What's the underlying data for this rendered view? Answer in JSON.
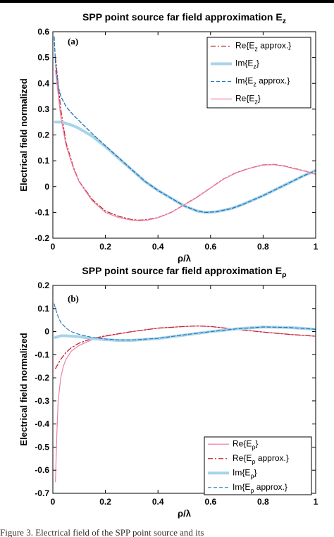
{
  "caption": "Figure 3. Electrical field of the SPP point source and its",
  "chart_data": [
    {
      "type": "line",
      "title": "SPP point source far field approximation E",
      "title_sub": "z",
      "panel_label": "(a)",
      "xlabel": "ρ/λ",
      "ylabel": "Electrical field normalized",
      "xlim": [
        0,
        1
      ],
      "ylim": [
        -0.2,
        0.6
      ],
      "xticks": [
        "0",
        "0.2",
        "0.4",
        "0.6",
        "0.8",
        "1"
      ],
      "yticks": [
        "-0.2",
        "-0.1",
        "0",
        "0.1",
        "0.2",
        "0.3",
        "0.4",
        "0.5",
        "0.6"
      ],
      "grid": false,
      "legend_position": "top-right",
      "series": [
        {
          "name": "Re{E",
          "sub": "z",
          "suffix": " approx.}",
          "color": "#c0272d",
          "style": "dashdot",
          "width": 1.3,
          "x": [
            0.01,
            0.03,
            0.05,
            0.08,
            0.1,
            0.15,
            0.2,
            0.25,
            0.3,
            0.33,
            0.36,
            0.4,
            0.45,
            0.5,
            0.55,
            0.6,
            0.65,
            0.7,
            0.75,
            0.8,
            0.84,
            0.88,
            0.92,
            0.96,
            1.0
          ],
          "y": [
            0.5,
            0.3,
            0.17,
            0.07,
            0.02,
            -0.05,
            -0.095,
            -0.115,
            -0.128,
            -0.13,
            -0.128,
            -0.12,
            -0.1,
            -0.07,
            -0.04,
            -0.005,
            0.03,
            0.055,
            0.072,
            0.084,
            0.086,
            0.08,
            0.07,
            0.06,
            0.048
          ]
        },
        {
          "name": "Im{E",
          "sub": "z",
          "suffix": "}",
          "color": "#a8d4ea",
          "style": "solid",
          "width": 4,
          "x": [
            0.01,
            0.03,
            0.05,
            0.08,
            0.1,
            0.15,
            0.2,
            0.25,
            0.3,
            0.35,
            0.4,
            0.45,
            0.5,
            0.55,
            0.58,
            0.62,
            0.68,
            0.72,
            0.8,
            0.85,
            0.9,
            0.95,
            1.0
          ],
          "y": [
            0.25,
            0.25,
            0.245,
            0.235,
            0.225,
            0.195,
            0.155,
            0.11,
            0.065,
            0.02,
            -0.015,
            -0.045,
            -0.075,
            -0.095,
            -0.1,
            -0.098,
            -0.085,
            -0.07,
            -0.035,
            -0.01,
            0.015,
            0.04,
            0.062
          ]
        },
        {
          "name": "Im{E",
          "sub": "z",
          "suffix": " approx.}",
          "color": "#1f73b7",
          "style": "dashed",
          "width": 1.3,
          "x": [
            0.005,
            0.01,
            0.02,
            0.03,
            0.05,
            0.08,
            0.1,
            0.15,
            0.2,
            0.25,
            0.3,
            0.35,
            0.4,
            0.45,
            0.5,
            0.55,
            0.58,
            0.62,
            0.68,
            0.72,
            0.8,
            0.85,
            0.9,
            0.95,
            1.0
          ],
          "y": [
            0.58,
            0.48,
            0.39,
            0.35,
            0.31,
            0.275,
            0.255,
            0.205,
            0.158,
            0.112,
            0.066,
            0.021,
            -0.015,
            -0.045,
            -0.075,
            -0.095,
            -0.1,
            -0.098,
            -0.085,
            -0.07,
            -0.035,
            -0.01,
            0.015,
            0.04,
            0.062
          ]
        },
        {
          "name": "Re{E",
          "sub": "z",
          "suffix": "}",
          "color": "#ee7fa8",
          "style": "solid",
          "width": 1.2,
          "x": [
            0.01,
            0.03,
            0.05,
            0.08,
            0.1,
            0.15,
            0.2,
            0.25,
            0.3,
            0.33,
            0.36,
            0.4,
            0.45,
            0.5,
            0.55,
            0.6,
            0.65,
            0.7,
            0.75,
            0.8,
            0.84,
            0.88,
            0.92,
            0.96,
            1.0
          ],
          "y": [
            0.45,
            0.27,
            0.16,
            0.065,
            0.018,
            -0.055,
            -0.1,
            -0.12,
            -0.13,
            -0.132,
            -0.13,
            -0.121,
            -0.101,
            -0.071,
            -0.041,
            -0.006,
            0.029,
            0.054,
            0.071,
            0.083,
            0.085,
            0.079,
            0.069,
            0.059,
            0.047
          ]
        }
      ]
    },
    {
      "type": "line",
      "title": "SPP point source far field approximation E",
      "title_sub": "ρ",
      "panel_label": "(b)",
      "xlabel": "ρ/λ",
      "ylabel": "Electrical field normalized",
      "xlim": [
        0,
        1
      ],
      "ylim": [
        -0.7,
        0.2
      ],
      "xticks": [
        "0",
        "0.2",
        "0.4",
        "0.6",
        "0.8",
        "1"
      ],
      "yticks": [
        "-0.7",
        "-0.6",
        "-0.5",
        "-0.4",
        "-0.3",
        "-0.2",
        "-0.1",
        "0",
        "0.1",
        "0.2"
      ],
      "grid": false,
      "legend_position": "bottom-right",
      "series": [
        {
          "name": "Re{E",
          "sub": "ρ",
          "suffix": "}",
          "color": "#ee7fa8",
          "style": "solid",
          "width": 1.2,
          "x": [
            0.01,
            0.015,
            0.02,
            0.03,
            0.04,
            0.05,
            0.07,
            0.1,
            0.15,
            0.2,
            0.3,
            0.4,
            0.5,
            0.55,
            0.6,
            0.7,
            0.8,
            0.9,
            1.0
          ],
          "y": [
            -0.65,
            -0.45,
            -0.3,
            -0.2,
            -0.15,
            -0.12,
            -0.085,
            -0.06,
            -0.035,
            -0.02,
            0.0,
            0.015,
            0.022,
            0.024,
            0.022,
            0.01,
            -0.002,
            -0.012,
            -0.02
          ]
        },
        {
          "name": "Re{E",
          "sub": "ρ",
          "suffix": " approx.}",
          "color": "#c0272d",
          "style": "dashdot",
          "width": 1.3,
          "x": [
            0.01,
            0.02,
            0.03,
            0.05,
            0.07,
            0.1,
            0.15,
            0.2,
            0.3,
            0.4,
            0.5,
            0.55,
            0.6,
            0.7,
            0.8,
            0.9,
            1.0
          ],
          "y": [
            -0.16,
            -0.14,
            -0.12,
            -0.09,
            -0.07,
            -0.05,
            -0.03,
            -0.018,
            0.0,
            0.015,
            0.022,
            0.025,
            0.022,
            0.01,
            -0.002,
            -0.012,
            -0.02
          ]
        },
        {
          "name": "Im{E",
          "sub": "ρ",
          "suffix": "}",
          "color": "#a8d4ea",
          "style": "solid",
          "width": 4,
          "x": [
            0.01,
            0.03,
            0.05,
            0.1,
            0.15,
            0.2,
            0.25,
            0.3,
            0.4,
            0.5,
            0.6,
            0.7,
            0.8,
            0.9,
            1.0
          ],
          "y": [
            -0.025,
            -0.018,
            -0.018,
            -0.022,
            -0.03,
            -0.035,
            -0.038,
            -0.038,
            -0.03,
            -0.015,
            0.0,
            0.012,
            0.02,
            0.018,
            0.01
          ]
        },
        {
          "name": "Im{E",
          "sub": "ρ",
          "suffix": " approx.}",
          "color": "#1f73b7",
          "style": "dashed",
          "width": 1.1,
          "x": [
            0.005,
            0.01,
            0.02,
            0.03,
            0.05,
            0.07,
            0.1,
            0.15,
            0.2,
            0.25,
            0.3,
            0.4,
            0.5,
            0.6,
            0.7,
            0.8,
            0.9,
            1.0
          ],
          "y": [
            0.12,
            0.1,
            0.065,
            0.04,
            0.015,
            0.0,
            -0.012,
            -0.025,
            -0.032,
            -0.036,
            -0.036,
            -0.029,
            -0.014,
            0.0,
            0.012,
            0.02,
            0.018,
            0.01
          ]
        }
      ]
    }
  ]
}
